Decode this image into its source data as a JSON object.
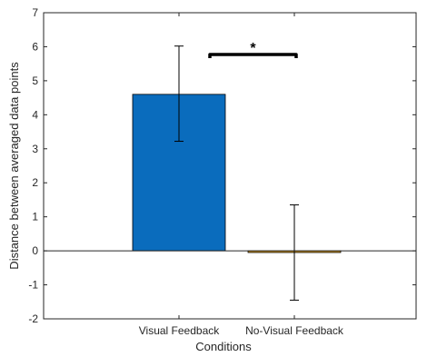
{
  "chart_data": {
    "type": "bar",
    "title": "",
    "xlabel": "Conditions",
    "ylabel": "Distance between averaged data points",
    "categories": [
      "Visual Feedback",
      "No-Visual Feedback"
    ],
    "values": [
      4.6,
      -0.05
    ],
    "error_low": [
      3.22,
      -1.45
    ],
    "error_high": [
      6.02,
      1.35
    ],
    "ylim": [
      -2,
      7
    ],
    "yticks": [
      "-2",
      "-1",
      "0",
      "1",
      "2",
      "3",
      "4",
      "5",
      "6",
      "7"
    ],
    "bar_colors": [
      "#0a6cbd",
      "#d99a1e"
    ],
    "significance": {
      "between": [
        0,
        1
      ],
      "label": "*"
    },
    "grid": false,
    "legend": "none"
  }
}
